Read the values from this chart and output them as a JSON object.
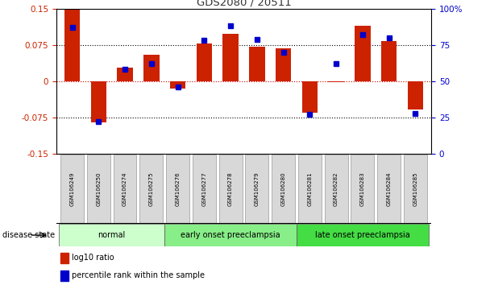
{
  "title": "GDS2080 / 20511",
  "samples": [
    "GSM106249",
    "GSM106250",
    "GSM106274",
    "GSM106275",
    "GSM106276",
    "GSM106277",
    "GSM106278",
    "GSM106279",
    "GSM106280",
    "GSM106281",
    "GSM106282",
    "GSM106283",
    "GSM106284",
    "GSM106285"
  ],
  "log10_ratio": [
    0.147,
    -0.085,
    0.028,
    0.055,
    -0.015,
    0.078,
    0.098,
    0.072,
    0.068,
    -0.065,
    -0.002,
    0.115,
    0.083,
    -0.058
  ],
  "percentile_rank": [
    87,
    22,
    58,
    62,
    46,
    78,
    88,
    79,
    70,
    27,
    62,
    82,
    80,
    28
  ],
  "disease_groups": [
    {
      "label": "normal",
      "start": 0,
      "end": 3,
      "color": "#ccffcc"
    },
    {
      "label": "early onset preeclampsia",
      "start": 4,
      "end": 8,
      "color": "#88ee88"
    },
    {
      "label": "late onset preeclampsia",
      "start": 9,
      "end": 13,
      "color": "#44dd44"
    }
  ],
  "ylim_left": [
    -0.15,
    0.15
  ],
  "ylim_right": [
    0,
    100
  ],
  "yticks_left": [
    -0.15,
    -0.075,
    0,
    0.075,
    0.15
  ],
  "yticks_right": [
    0,
    25,
    50,
    75,
    100
  ],
  "bar_color": "#cc2200",
  "dot_color": "#0000cc",
  "zero_line_color": "#cc0000",
  "bg_color": "#ffffff",
  "tick_label_color_left": "#cc2200",
  "tick_label_color_right": "#0000cc",
  "legend_log10": "log10 ratio",
  "legend_percentile": "percentile rank within the sample",
  "disease_state_label": "disease state"
}
